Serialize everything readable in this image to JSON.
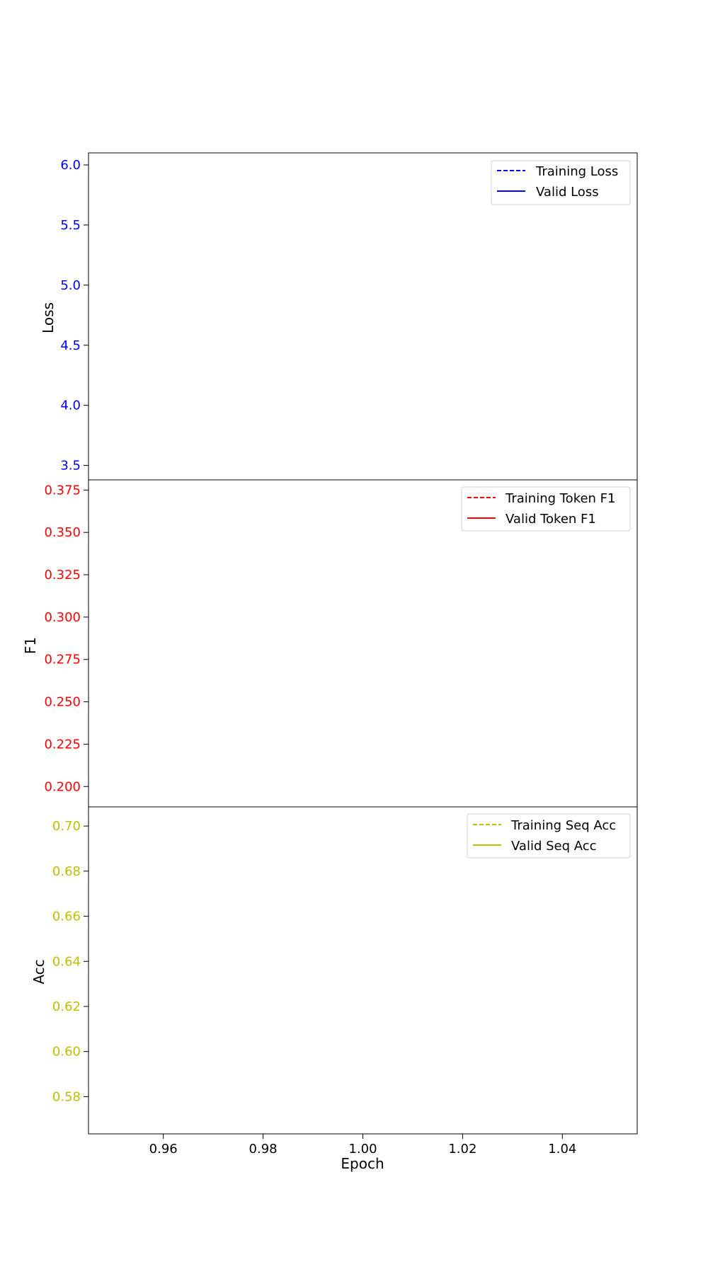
{
  "chart_data": [
    {
      "type": "line",
      "ylabel": "Loss",
      "color": "#0000ff",
      "ylim": [
        3.38,
        6.1
      ],
      "yticks": [
        "6.0",
        "5.5",
        "5.0",
        "4.5",
        "4.0",
        "3.5"
      ],
      "legend_position": "top-right",
      "series": [
        {
          "name": "Training Loss",
          "style": "dashed",
          "x": [],
          "y": []
        },
        {
          "name": "Valid Loss",
          "style": "solid",
          "x": [],
          "y": []
        }
      ]
    },
    {
      "type": "line",
      "ylabel": "F1",
      "color": "#ff0000",
      "ylim": [
        0.188,
        0.381
      ],
      "yticks": [
        "0.375",
        "0.350",
        "0.325",
        "0.300",
        "0.275",
        "0.250",
        "0.225",
        "0.200"
      ],
      "legend_position": "top-right",
      "series": [
        {
          "name": "Training Token F1",
          "style": "dashed",
          "x": [],
          "y": []
        },
        {
          "name": "Valid Token F1",
          "style": "solid",
          "x": [],
          "y": []
        }
      ]
    },
    {
      "type": "line",
      "ylabel": "Acc",
      "xlabel": "Epoch",
      "color": "#bfbf00",
      "ylim": [
        0.5635,
        0.7085
      ],
      "yticks": [
        "0.70",
        "0.68",
        "0.66",
        "0.64",
        "0.62",
        "0.60",
        "0.58"
      ],
      "xlim": [
        0.945,
        1.055
      ],
      "xticks": [
        "0.96",
        "0.98",
        "1.00",
        "1.02",
        "1.04"
      ],
      "legend_position": "top-right",
      "series": [
        {
          "name": "Training Seq Acc",
          "style": "dashed",
          "x": [],
          "y": []
        },
        {
          "name": "Valid Seq Acc",
          "style": "solid",
          "x": [],
          "y": []
        }
      ]
    }
  ]
}
